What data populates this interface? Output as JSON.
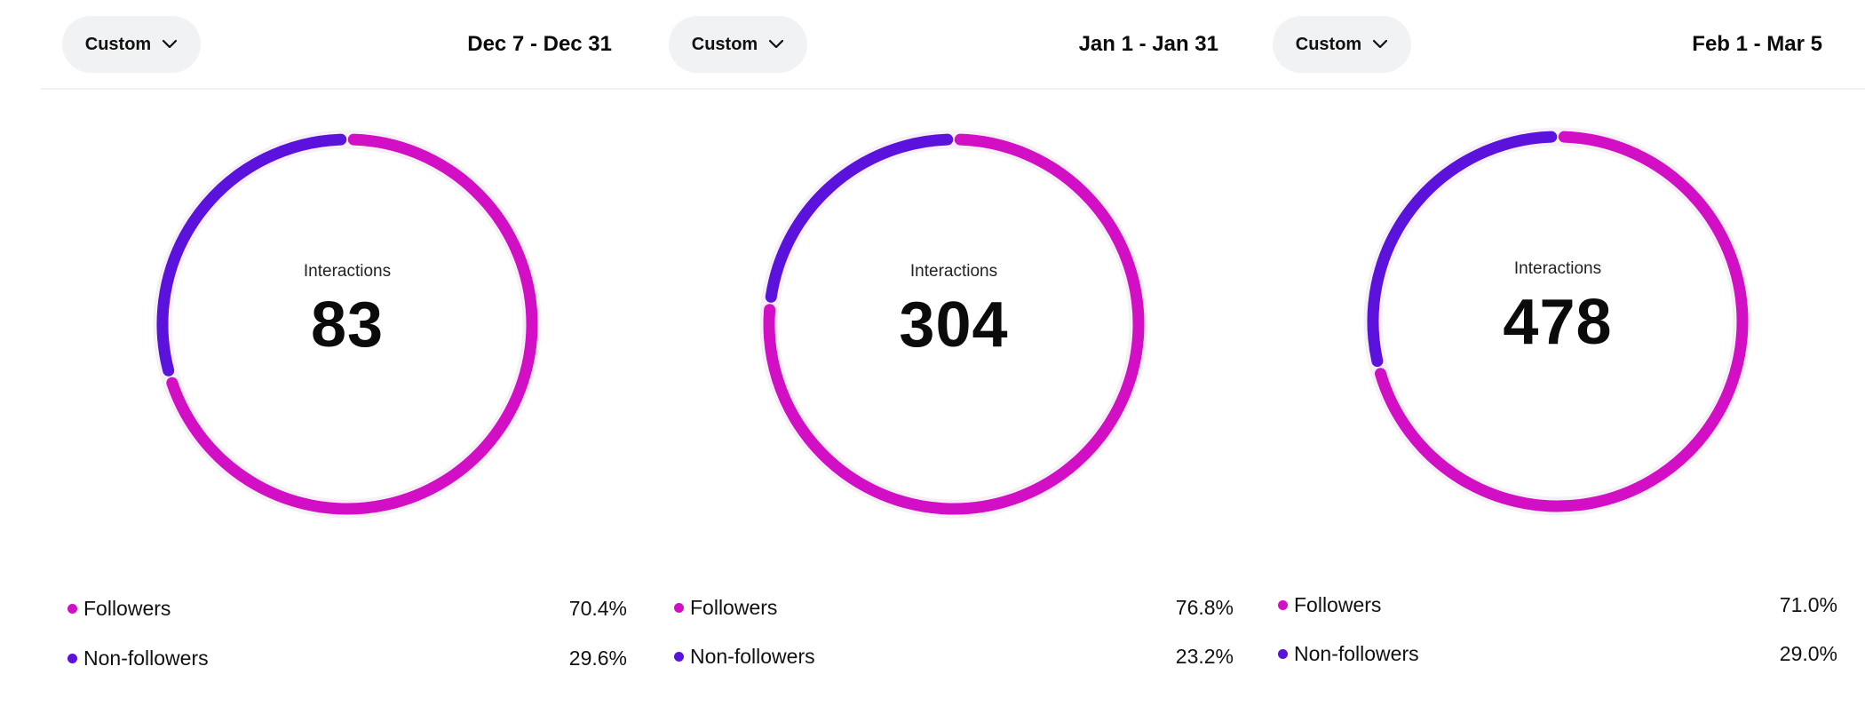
{
  "colors": {
    "followers": "#d20fc5",
    "non_followers": "#5b12dc",
    "ring_background": "#f5f0f6"
  },
  "icons": {
    "dropdown": "chevron-down-icon"
  },
  "panels": [
    {
      "range_button": "Custom",
      "date_range": "Dec 7 - Dec 31",
      "metric_label": "Interactions",
      "metric_value": "83",
      "legend": [
        {
          "name": "Followers",
          "percent": "70.4%"
        },
        {
          "name": "Non-followers",
          "percent": "29.6%"
        }
      ]
    },
    {
      "range_button": "Custom",
      "date_range": "Jan 1 - Jan 31",
      "metric_label": "Interactions",
      "metric_value": "304",
      "legend": [
        {
          "name": "Followers",
          "percent": "76.8%"
        },
        {
          "name": "Non-followers",
          "percent": "23.2%"
        }
      ]
    },
    {
      "range_button": "Custom",
      "date_range": "Feb 1 - Mar 5",
      "metric_label": "Interactions",
      "metric_value": "478",
      "legend": [
        {
          "name": "Followers",
          "percent": "71.0%"
        },
        {
          "name": "Non-followers",
          "percent": "29.0%"
        }
      ]
    }
  ],
  "chart_data": [
    {
      "type": "pie",
      "title": "Interactions",
      "total": 83,
      "categories": [
        "Followers",
        "Non-followers"
      ],
      "values": [
        70.4,
        29.6
      ],
      "colors": [
        "#d20fc5",
        "#5b12dc"
      ]
    },
    {
      "type": "pie",
      "title": "Interactions",
      "total": 304,
      "categories": [
        "Followers",
        "Non-followers"
      ],
      "values": [
        76.8,
        23.2
      ],
      "colors": [
        "#d20fc5",
        "#5b12dc"
      ]
    },
    {
      "type": "pie",
      "title": "Interactions",
      "total": 478,
      "categories": [
        "Followers",
        "Non-followers"
      ],
      "values": [
        71.0,
        29.0
      ],
      "colors": [
        "#d20fc5",
        "#5b12dc"
      ]
    }
  ]
}
